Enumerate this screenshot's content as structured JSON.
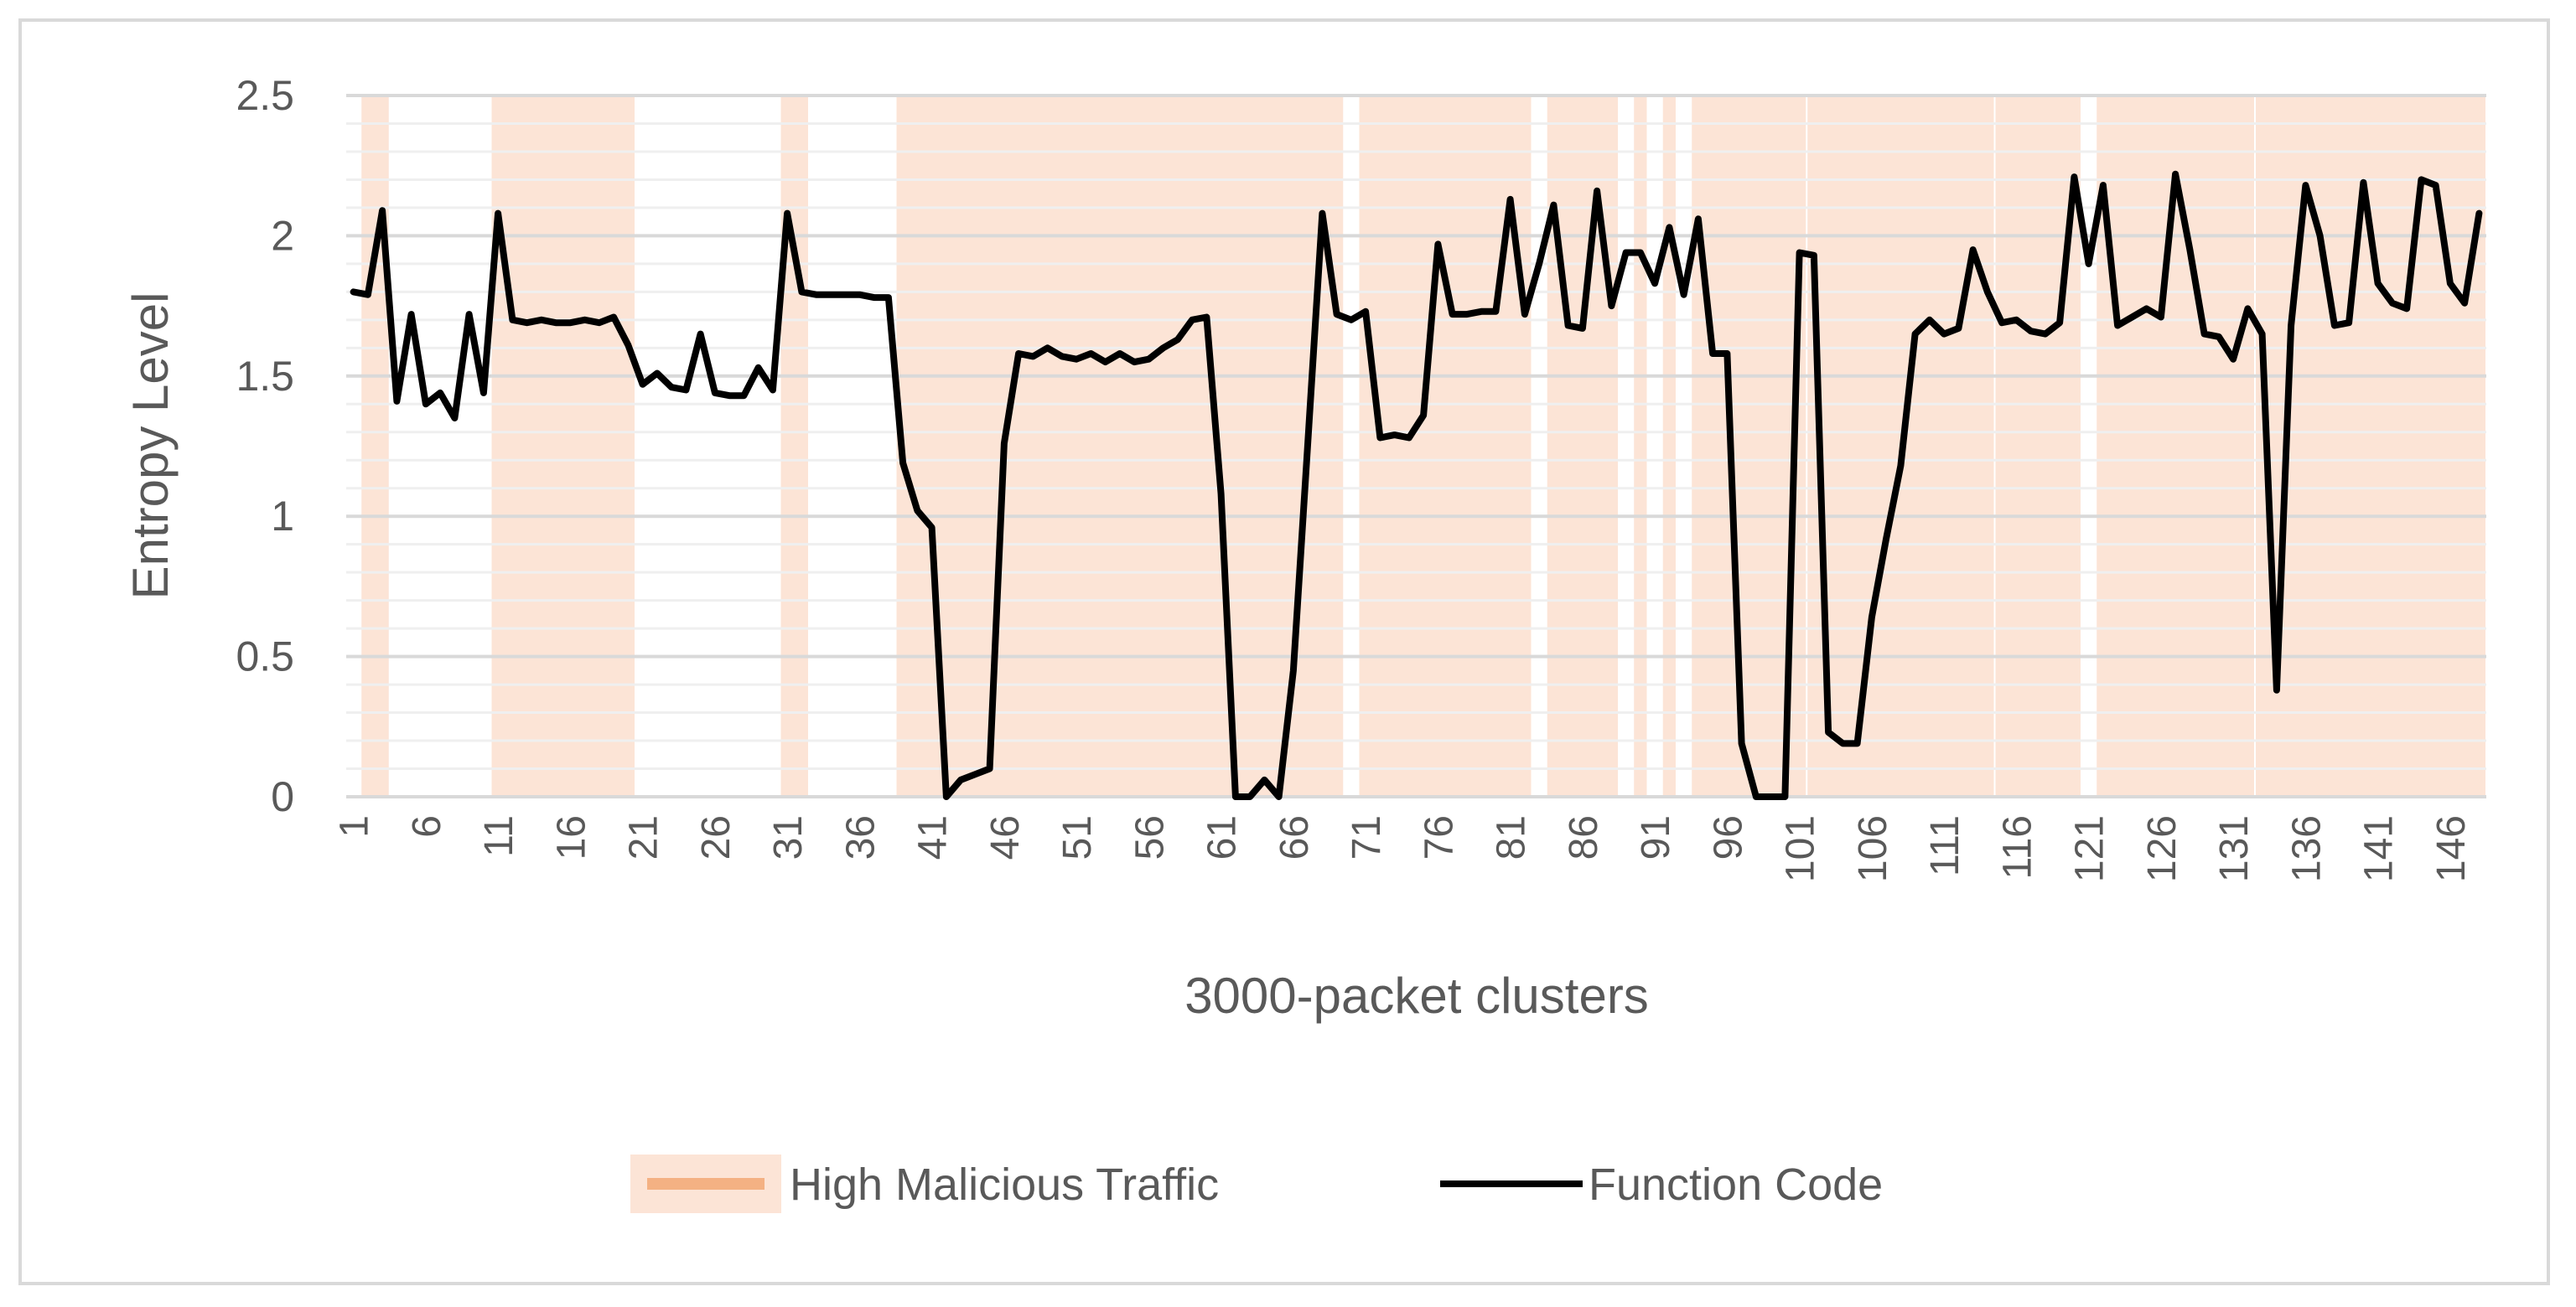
{
  "chart_data": {
    "type": "line",
    "xlabel": "3000-packet clusters",
    "ylabel": "Entropy Level",
    "ylim": [
      0,
      2.5
    ],
    "yticks": [
      "0",
      "0.5",
      "1",
      "1.5",
      "2",
      "2.5"
    ],
    "x_tick_labels": [
      "1",
      "6",
      "11",
      "16",
      "21",
      "26",
      "31",
      "36",
      "41",
      "46",
      "51",
      "56",
      "61",
      "66",
      "71",
      "76",
      "81",
      "86",
      "91",
      "96",
      "101",
      "106",
      "111",
      "116",
      "121",
      "126",
      "131",
      "136",
      "141",
      "146"
    ],
    "x_categories_count": 148,
    "grid": true,
    "legend_position": "bottom",
    "series": [
      {
        "name": "Function Code",
        "color": "#000000",
        "values": [
          1.8,
          1.79,
          2.09,
          1.41,
          1.72,
          1.4,
          1.44,
          1.35,
          1.72,
          1.44,
          2.08,
          1.7,
          1.69,
          1.7,
          1.69,
          1.69,
          1.7,
          1.69,
          1.71,
          1.61,
          1.47,
          1.51,
          1.46,
          1.45,
          1.65,
          1.44,
          1.43,
          1.43,
          1.53,
          1.45,
          2.08,
          1.8,
          1.79,
          1.79,
          1.79,
          1.79,
          1.78,
          1.78,
          1.19,
          1.02,
          0.96,
          0.0,
          0.06,
          0.08,
          0.1,
          1.26,
          1.58,
          1.57,
          1.6,
          1.57,
          1.56,
          1.58,
          1.55,
          1.58,
          1.55,
          1.56,
          1.6,
          1.63,
          1.7,
          1.71,
          1.08,
          0.0,
          0.0,
          0.06,
          0.0,
          0.45,
          1.26,
          2.08,
          1.72,
          1.7,
          1.73,
          1.28,
          1.29,
          1.28,
          1.36,
          1.97,
          1.72,
          1.72,
          1.73,
          1.73,
          2.13,
          1.72,
          1.9,
          2.11,
          1.68,
          1.67,
          2.16,
          1.75,
          1.94,
          1.94,
          1.83,
          2.03,
          1.79,
          2.06,
          1.58,
          1.58,
          0.19,
          0.0,
          0.0,
          0.0,
          1.94,
          1.93,
          0.23,
          0.19,
          0.19,
          0.64,
          0.92,
          1.18,
          1.65,
          1.7,
          1.65,
          1.67,
          1.95,
          1.8,
          1.69,
          1.7,
          1.66,
          1.65,
          1.69,
          2.21,
          1.9,
          2.18,
          1.68,
          1.71,
          1.74,
          1.71,
          2.22,
          1.95,
          1.65,
          1.64,
          1.56,
          1.74,
          1.65,
          0.38,
          1.68,
          2.18,
          2.0,
          1.68,
          1.69,
          2.19,
          1.83,
          1.76,
          1.74,
          2.2,
          2.18,
          1.83,
          1.76,
          2.08
        ]
      },
      {
        "name": "High Malicious Traffic",
        "color": "#f4b183",
        "fill_color": "#fce4d6",
        "type": "bar-band",
        "spans": [
          [
            2,
            3
          ],
          [
            11,
            20
          ],
          [
            31,
            32
          ],
          [
            39,
            69
          ],
          [
            71,
            82
          ],
          [
            84,
            88
          ],
          [
            90,
            90
          ],
          [
            92,
            92
          ],
          [
            94,
            101
          ],
          [
            102,
            114
          ],
          [
            115,
            120
          ],
          [
            122,
            132
          ],
          [
            133,
            148
          ]
        ]
      }
    ]
  },
  "legend": {
    "items": [
      {
        "label": "High Malicious Traffic",
        "color": "#f4b183",
        "swatch_bg": "#fce4d6"
      },
      {
        "label": "Function Code",
        "color": "#000000"
      }
    ]
  }
}
